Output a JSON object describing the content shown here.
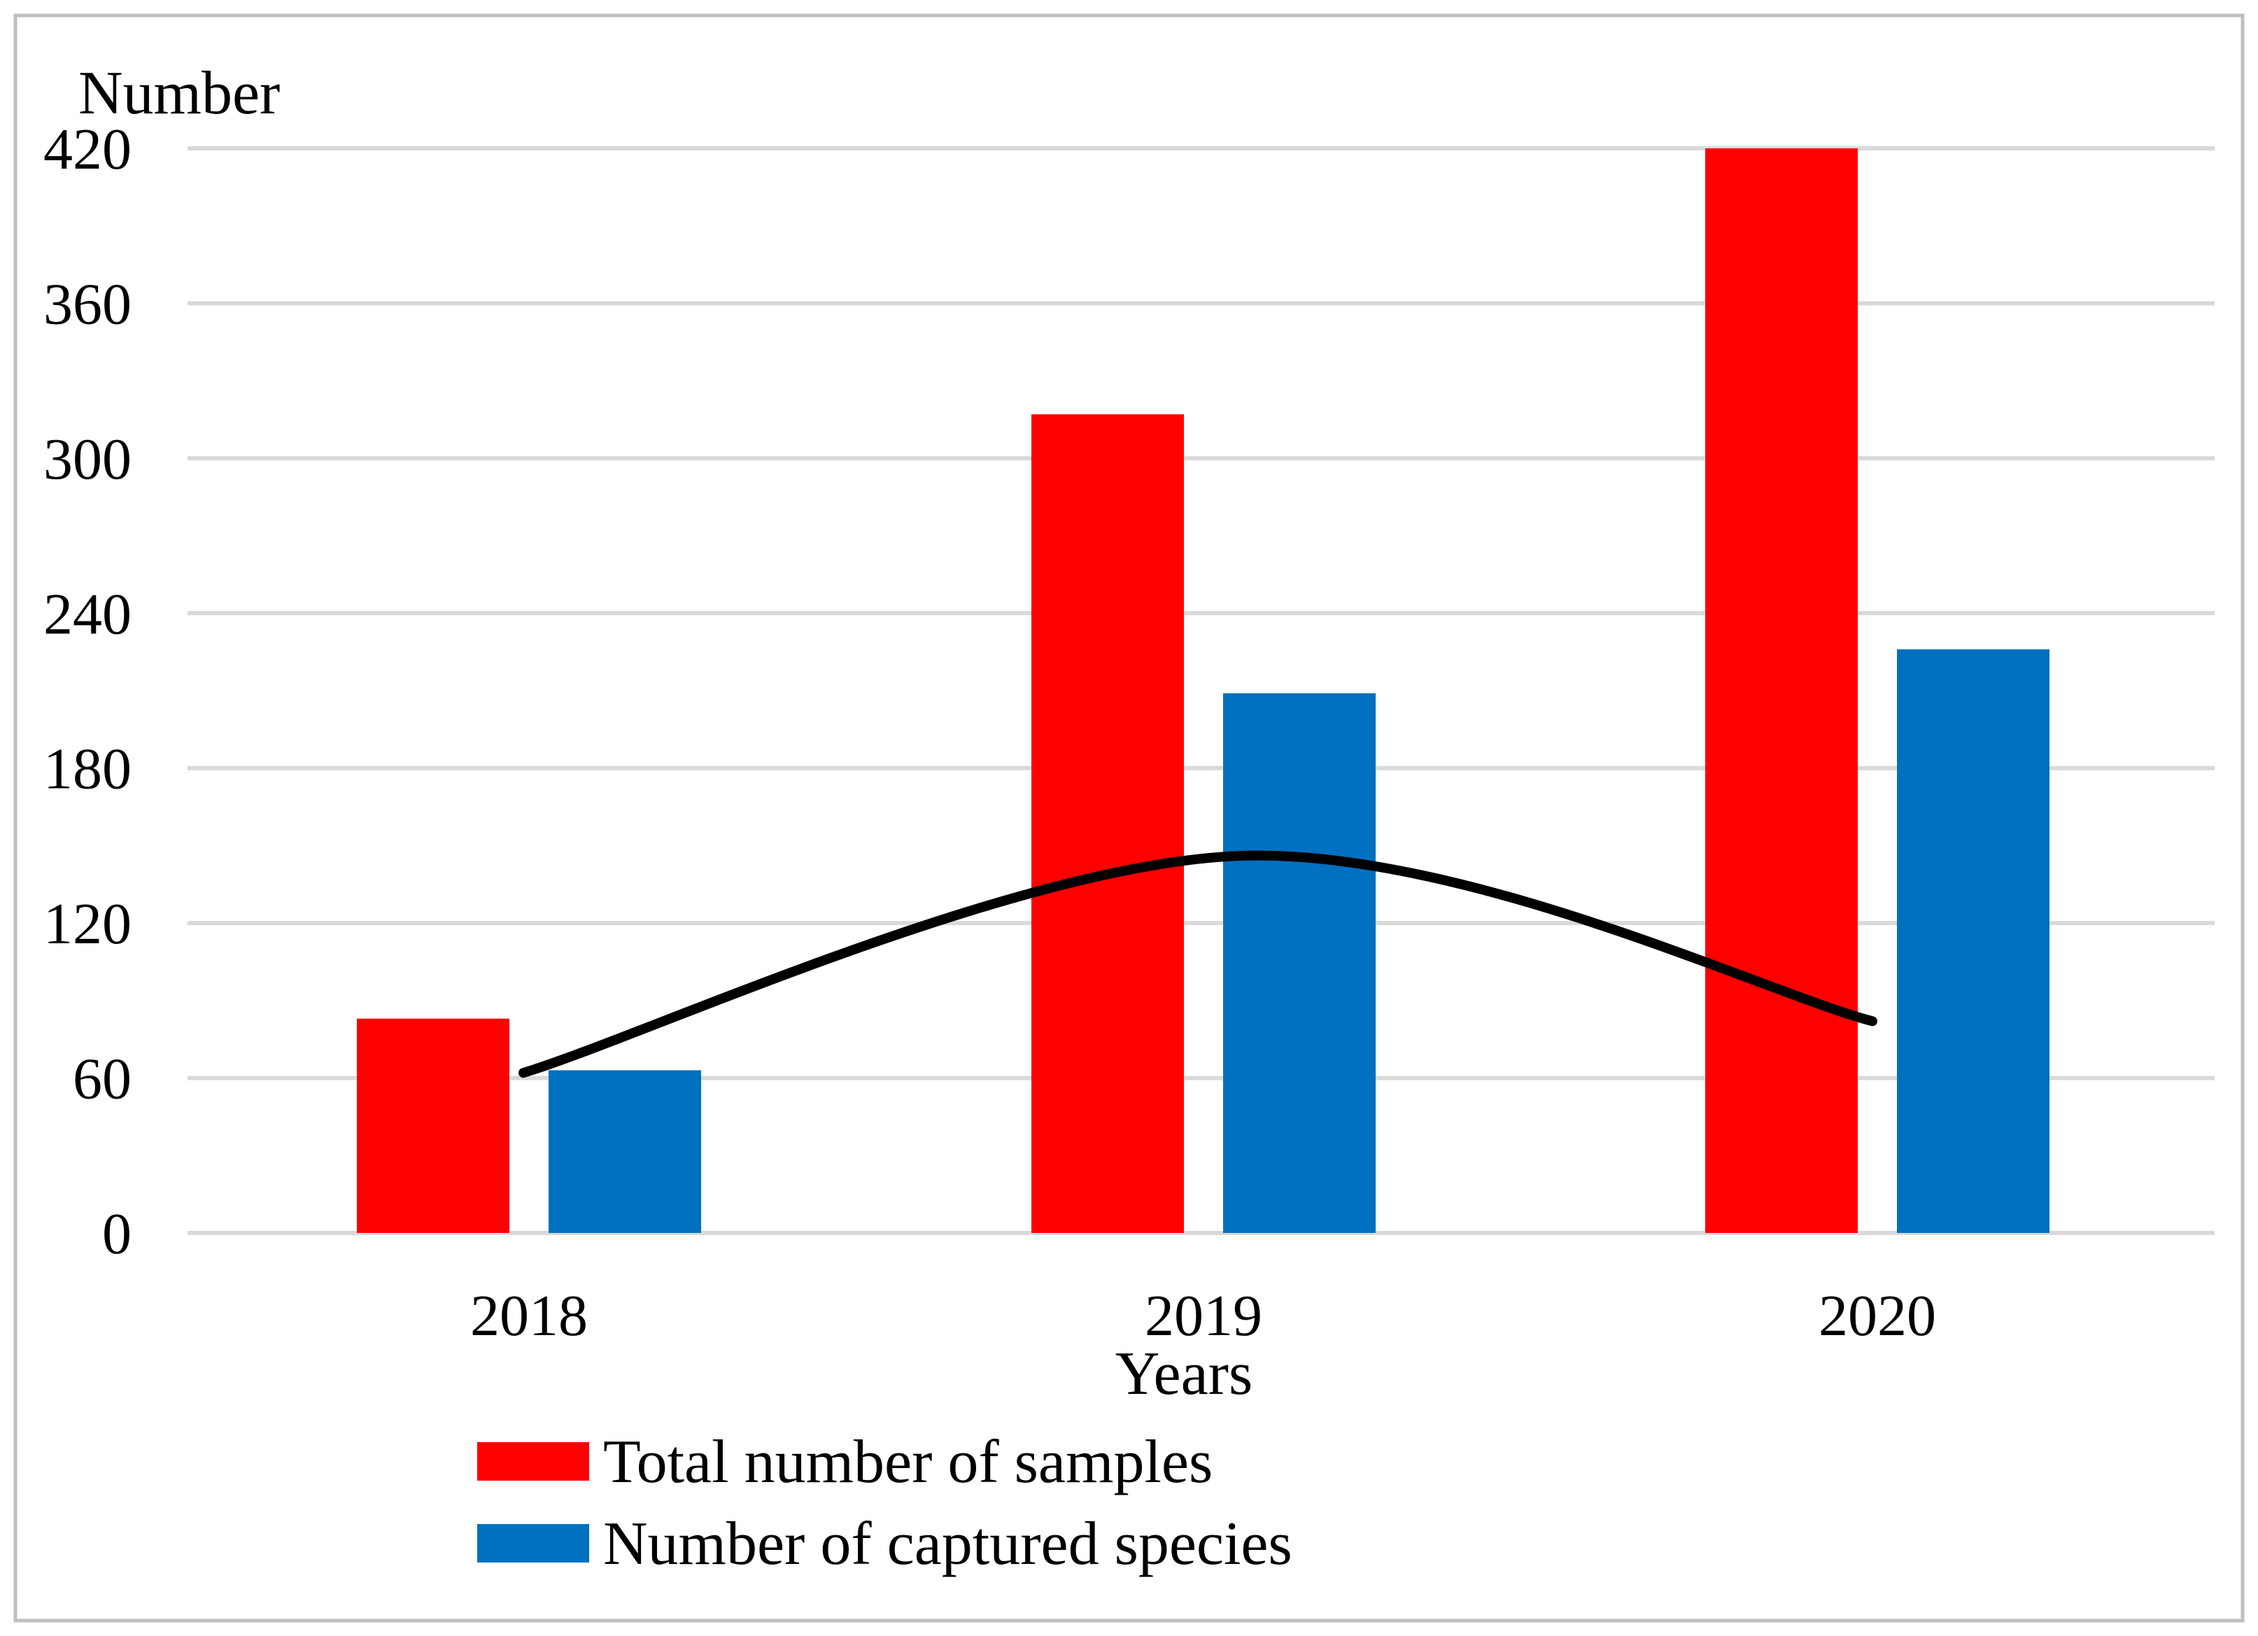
{
  "chart_data": {
    "type": "bar",
    "title": "",
    "xlabel": "Years",
    "ylabel": "Number",
    "ylim": [
      0,
      420
    ],
    "yticks": [
      0,
      60,
      120,
      180,
      240,
      300,
      360,
      420
    ],
    "ytick_labels": [
      "0",
      "60",
      "120",
      "180",
      "240",
      "300",
      "360",
      "420"
    ],
    "grid": true,
    "categories": [
      "2018",
      "2019",
      "2020"
    ],
    "series": [
      {
        "name": "Total number of samples",
        "color": "#ff0000",
        "values": [
          83,
          317,
          420
        ]
      },
      {
        "name": "Number of captured species",
        "color": "#0070c0",
        "values": [
          63,
          209,
          226
        ]
      }
    ],
    "trendline": {
      "color": "#000000",
      "x_anchor": "between series at each category",
      "values": [
        62,
        146,
        82
      ]
    },
    "legend_position": "bottom"
  }
}
